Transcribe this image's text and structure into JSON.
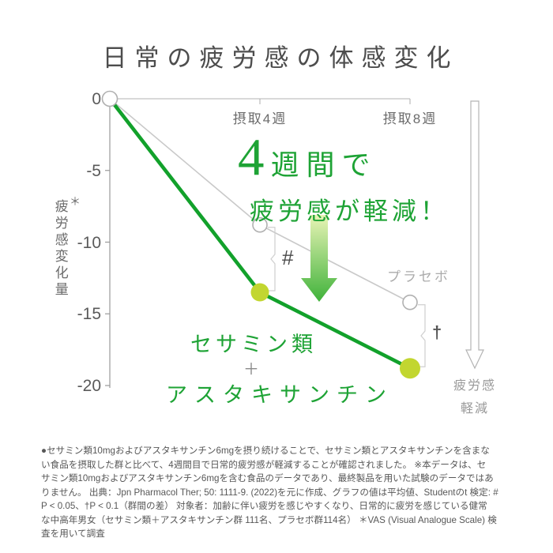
{
  "title": "日常の疲労感の体感変化",
  "chart_data": {
    "type": "line",
    "x_weeks": [
      0,
      4,
      8
    ],
    "x_tick_labels": [
      {
        "week": 4,
        "label": "摂取4週"
      },
      {
        "week": 8,
        "label": "摂取8週"
      }
    ],
    "yticks": [
      "0",
      "-5",
      "-10",
      "-15",
      "-20"
    ],
    "ytick_values": [
      0,
      -5,
      -10,
      -15,
      -20
    ],
    "ylim": [
      -20,
      0
    ],
    "ylabel": "疲労感変化量",
    "ylabel_note": "＊",
    "series": [
      {
        "name": "プラセボ",
        "values": [
          0,
          -8.8,
          -14.2
        ],
        "line_color": "#c9c9c9",
        "line_width": 1.6,
        "marker": "open-circle",
        "marker_stroke": "#b0b0b0"
      },
      {
        "name": "セサミン類＋アスタキサンチン",
        "values": [
          0,
          -13.5,
          -18.8
        ],
        "line_color": "#12a12b",
        "line_width": 4.6,
        "marker": "filled-dot",
        "marker_color": "#c2d630"
      }
    ],
    "significance": [
      {
        "week": 4,
        "label": "#"
      },
      {
        "week": 8,
        "label": "†"
      }
    ],
    "legend_position": "inline-labels",
    "grid": false
  },
  "annotation": {
    "big": "4",
    "rest": "週間で",
    "line2": "疲労感が軽減！"
  },
  "series_label": {
    "line1": "セサミン類",
    "plus": "＋",
    "line2": "アスタキサンチン"
  },
  "placebo_label": "プラセボ",
  "right_arrow_label": {
    "line1": "疲労感",
    "line2": "軽減"
  },
  "colors": {
    "accent_green": "#12a12b",
    "dot_green": "#c2d630",
    "annotation_green": "#1ea335",
    "arrow_gradient_top": "#e9f4b6",
    "arrow_gradient_bottom": "#3fb23a",
    "placebo_gray": "#c9c9c9",
    "axis_gray": "#9a9a9a"
  },
  "footnote_lines": [
    "●セサミン類10mgおよびアスタキサンチン6mgを摂り続けることで、セサミン類とアスタキサンチンを含まな",
    "い食品を摂取した群と比べて、4週間目で日常的疲労感が軽減することが確認されました。 ※本データは、セ",
    "サミン類10mgおよびアスタキサンチン6mgを含む食品のデータであり、最終製品を用いた試験のデータではあ",
    "りません。 出典：Jpn Pharmacol Ther; 50: 1111-9. (2022)を元に作成、グラフの値は平均値、Studentのt 検定: #",
    "P < 0.05、†P < 0.1（群間の差） 対象者：加齢に伴い疲労を感じやすくなり、日常的に疲労を感じている健常",
    "な中高年男女（セサミン類＋アスタキサンチン群 111名、プラセボ群114名） ＊VAS (Visual Analogue Scale) 検",
    "査を用いて調査"
  ]
}
